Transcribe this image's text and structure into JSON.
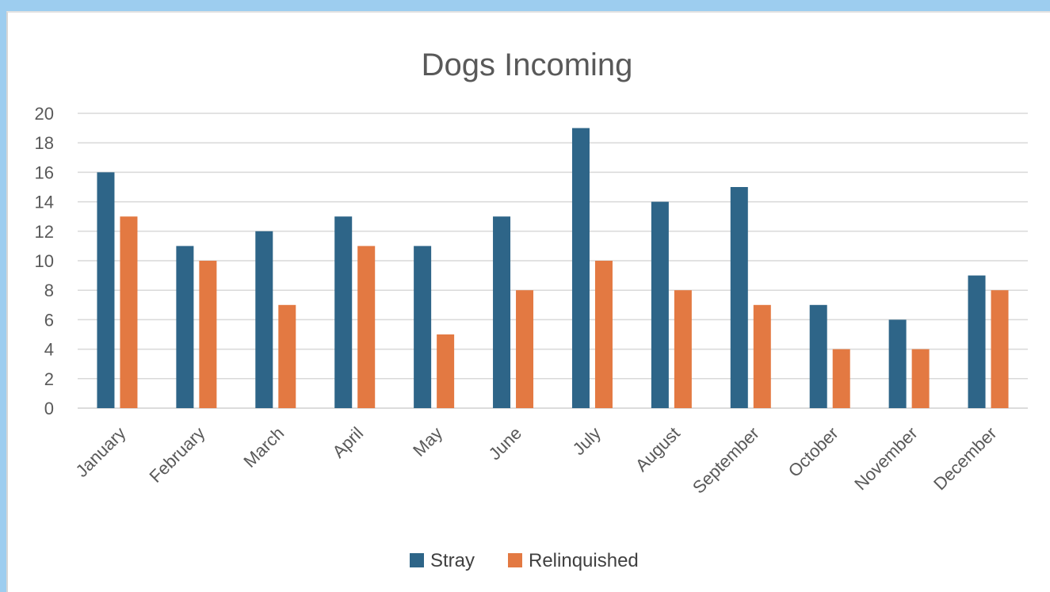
{
  "chart_data": {
    "type": "bar",
    "title": "Dogs Incoming",
    "xlabel": "",
    "ylabel": "",
    "categories": [
      "January",
      "February",
      "March",
      "April",
      "May",
      "June",
      "July",
      "August",
      "September",
      "October",
      "November",
      "December"
    ],
    "series": [
      {
        "name": "Stray",
        "color": "#2e6588",
        "values": [
          16,
          11,
          12,
          13,
          11,
          13,
          19,
          14,
          15,
          7,
          6,
          9
        ]
      },
      {
        "name": "Relinquished",
        "color": "#e37942",
        "values": [
          13,
          10,
          7,
          11,
          5,
          8,
          10,
          8,
          7,
          4,
          4,
          8
        ]
      }
    ],
    "ylim": [
      0,
      20
    ],
    "yticks": [
      "0",
      "2",
      "4",
      "6",
      "8",
      "10",
      "12",
      "14",
      "16",
      "18",
      "20"
    ],
    "grid": true,
    "legend_position": "bottom"
  }
}
